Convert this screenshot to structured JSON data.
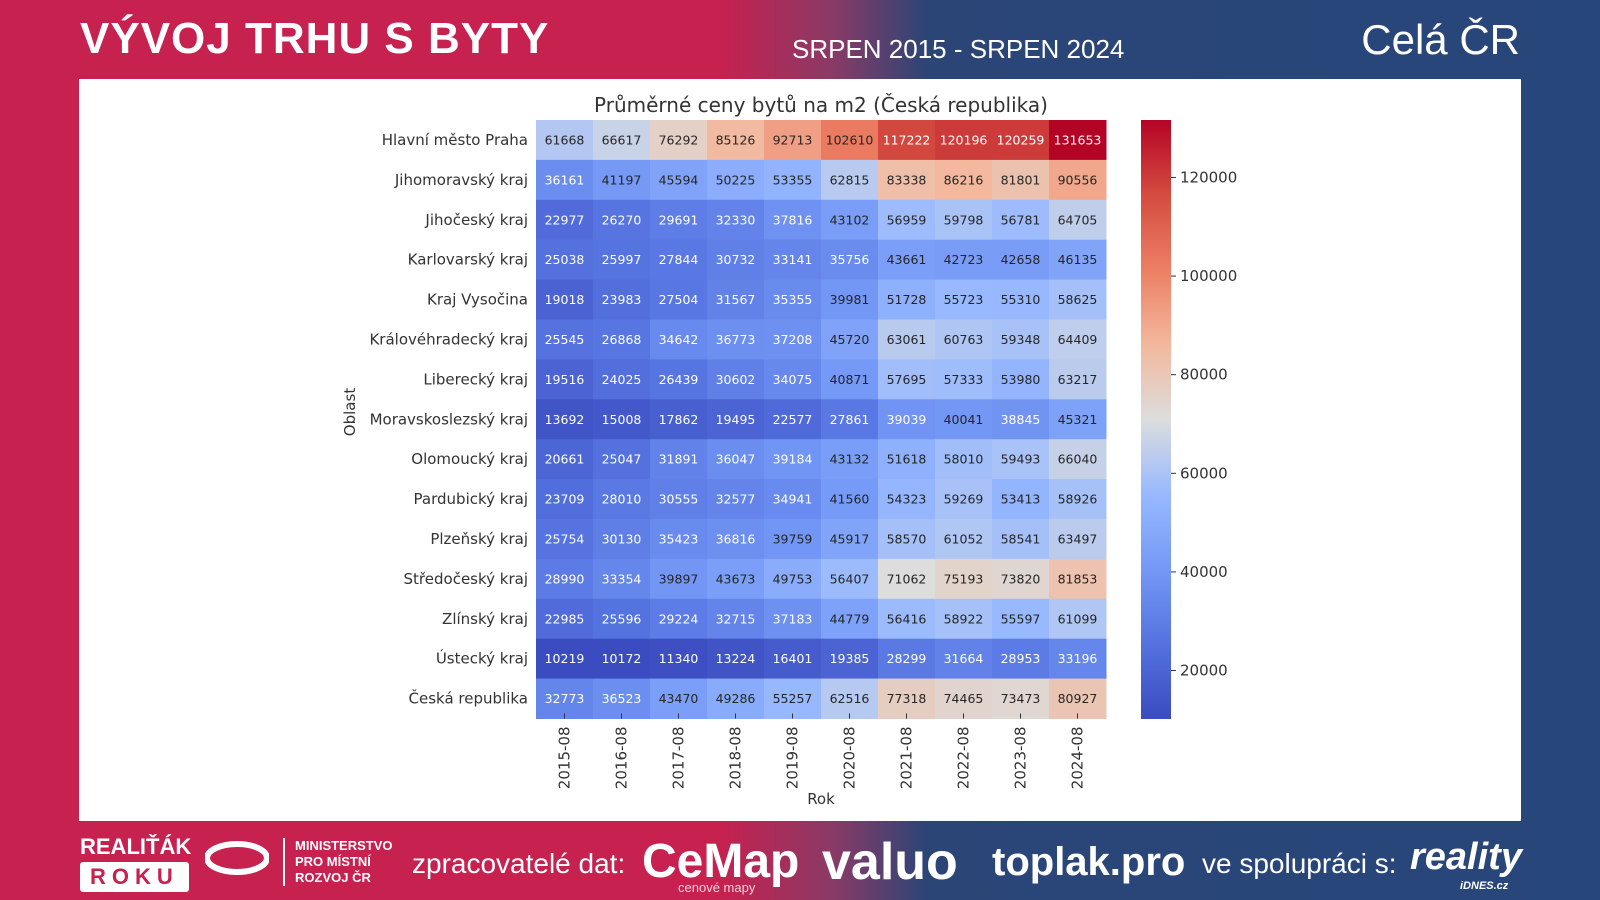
{
  "header": {
    "title": "VÝVOJ TRHU S BYTY",
    "period": "SRPEN 2015 - SRPEN 2024",
    "region": "Celá ČR"
  },
  "footer": {
    "realitak": "REALIŤÁK",
    "roku": "ROKU",
    "ministry": [
      "MINISTERSTVO",
      "PRO MÍSTNÍ",
      "ROZVOJ ČR"
    ],
    "processors_label": "zpracovatelé dat:",
    "cemap": "CeMap",
    "cemap_sub": "cenové mapy",
    "valuo": "valuo",
    "toplak": "toplak.pro",
    "cooperation_label": "ve spolupráci s:",
    "reality": "reality",
    "reality_sub": "iDNES.cz"
  },
  "chart_data": {
    "type": "heatmap",
    "title": "Průměrné ceny bytů na m2 (Česká republika)",
    "xlabel": "Rok",
    "ylabel": "Oblast",
    "x": [
      "2015-08",
      "2016-08",
      "2017-08",
      "2018-08",
      "2019-08",
      "2020-08",
      "2021-08",
      "2022-08",
      "2023-08",
      "2024-08"
    ],
    "y": [
      "Hlavní město Praha",
      "Jihomoravský kraj",
      "Jihočeský kraj",
      "Karlovarský kraj",
      "Kraj Vysočina",
      "Královéhradecký kraj",
      "Liberecký kraj",
      "Moravskoslezský kraj",
      "Olomoucký kraj",
      "Pardubický kraj",
      "Plzeňský kraj",
      "Středočeský kraj",
      "Zlínský kraj",
      "Ústecký kraj",
      "Česká republika"
    ],
    "values": [
      [
        61668,
        66617,
        76292,
        85126,
        92713,
        102610,
        117222,
        120196,
        120259,
        131653
      ],
      [
        36161,
        41197,
        45594,
        50225,
        53355,
        62815,
        83338,
        86216,
        81801,
        90556
      ],
      [
        22977,
        26270,
        29691,
        32330,
        37816,
        43102,
        56959,
        59798,
        56781,
        64705
      ],
      [
        25038,
        25997,
        27844,
        30732,
        33141,
        35756,
        43661,
        42723,
        42658,
        46135
      ],
      [
        19018,
        23983,
        27504,
        31567,
        35355,
        39981,
        51728,
        55723,
        55310,
        58625
      ],
      [
        25545,
        26868,
        34642,
        36773,
        37208,
        45720,
        63061,
        60763,
        59348,
        64409
      ],
      [
        19516,
        24025,
        26439,
        30602,
        34075,
        40871,
        57695,
        57333,
        53980,
        63217
      ],
      [
        13692,
        15008,
        17862,
        19495,
        22577,
        27861,
        39039,
        40041,
        38845,
        45321
      ],
      [
        20661,
        25047,
        31891,
        36047,
        39184,
        43132,
        51618,
        58010,
        59493,
        66040
      ],
      [
        23709,
        28010,
        30555,
        32577,
        34941,
        41560,
        54323,
        59269,
        53413,
        58926
      ],
      [
        25754,
        30130,
        35423,
        36816,
        39759,
        45917,
        58570,
        61052,
        58541,
        63497
      ],
      [
        28990,
        33354,
        39897,
        43673,
        49753,
        56407,
        71062,
        75193,
        73820,
        81853
      ],
      [
        22985,
        25596,
        29224,
        32715,
        37183,
        44779,
        56416,
        58922,
        55597,
        61099
      ],
      [
        10219,
        10172,
        11340,
        13224,
        16401,
        19385,
        28299,
        31664,
        28953,
        33196
      ],
      [
        32773,
        36523,
        43470,
        49286,
        55257,
        62516,
        77318,
        74465,
        73473,
        80927
      ]
    ],
    "colormap": "coolwarm",
    "vmin": 10172,
    "vmax": 131653,
    "colorbar_ticks": [
      20000,
      40000,
      60000,
      80000,
      100000,
      120000
    ],
    "colorbar_tick_labels": [
      "20000",
      "40000",
      "60000",
      "80000",
      "100000",
      "120000"
    ]
  }
}
